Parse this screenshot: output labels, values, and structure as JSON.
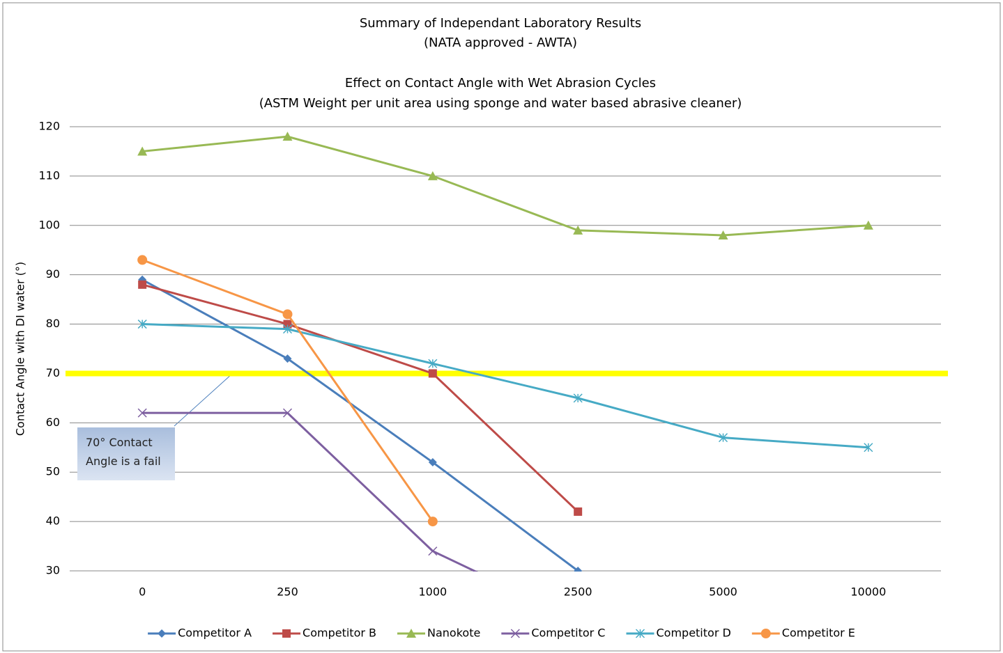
{
  "chart_data": {
    "type": "line",
    "title": "Summary of Independant Laboratory Results",
    "subtitle": "(NATA approved  - AWTA)",
    "title2": "Effect on Contact Angle with Wet Abrasion Cycles",
    "subtitle2": "(ASTM Weight per unit area using sponge and water based abrasive cleaner)",
    "y_label": "Contact Angle with DI water (°)",
    "categories": [
      "0",
      "250",
      "1000",
      "2500",
      "5000",
      "10000"
    ],
    "series": [
      {
        "name": "Competitor A",
        "color": "#4a7ebb",
        "marker": "diamond",
        "values": [
          89,
          73,
          52,
          30,
          null,
          null
        ]
      },
      {
        "name": "Competitor B",
        "color": "#be4b48",
        "marker": "square",
        "values": [
          88,
          80,
          70,
          42,
          null,
          null
        ]
      },
      {
        "name": "Nanokote",
        "color": "#98b954",
        "marker": "triangle",
        "values": [
          115,
          118,
          110,
          99,
          98,
          100
        ]
      },
      {
        "name": "Competitor C",
        "color": "#7d5fa0",
        "marker": "x",
        "values": [
          62,
          62,
          34,
          20,
          null,
          null
        ]
      },
      {
        "name": "Competitor D",
        "color": "#46aac5",
        "marker": "star",
        "values": [
          80,
          79,
          72,
          65,
          57,
          55
        ]
      },
      {
        "name": "Competitor E",
        "color": "#f79646",
        "marker": "circle",
        "values": [
          93,
          82,
          40,
          null,
          null,
          null
        ]
      }
    ],
    "ylim": [
      30,
      120
    ],
    "yticks": [
      30,
      40,
      50,
      60,
      70,
      80,
      90,
      100,
      110,
      120
    ],
    "grid": true,
    "reference_line": {
      "value": 70,
      "color": "#ffff00"
    },
    "annotation": "70° Contact Angle is a fail",
    "legend": "bottom"
  }
}
